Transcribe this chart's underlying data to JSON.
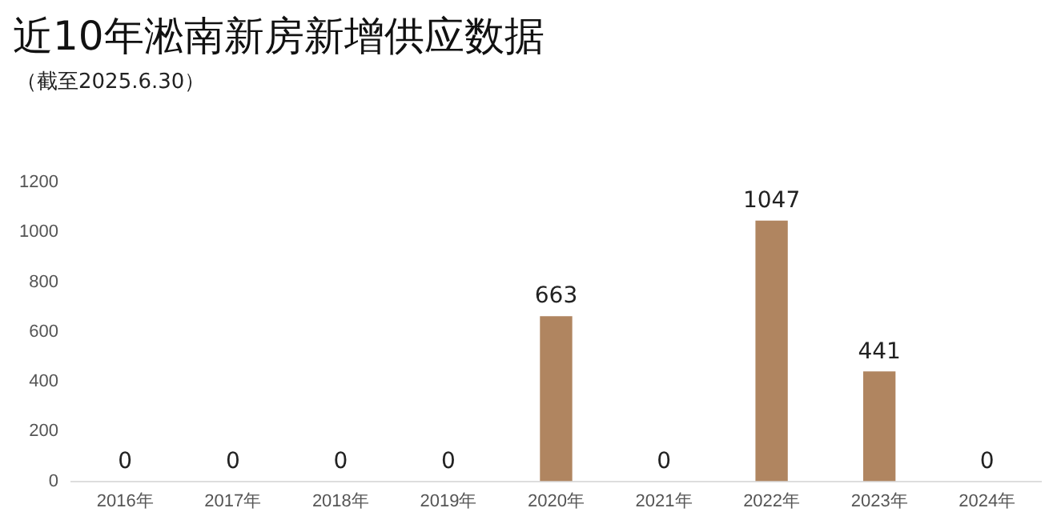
{
  "chart_data": {
    "type": "bar",
    "title": "近10年淞南新房新增供应数据",
    "subtitle": "（截至2025.6.30）",
    "categories": [
      "2016年",
      "2017年",
      "2018年",
      "2019年",
      "2020年",
      "2021年",
      "2022年",
      "2023年",
      "2024年"
    ],
    "values": [
      0,
      0,
      0,
      0,
      663,
      0,
      1047,
      441,
      0
    ],
    "color": "#b08560",
    "ylim": [
      0,
      1200
    ],
    "yticks": [
      0,
      200,
      400,
      600,
      800,
      1000,
      1200
    ],
    "grid": false,
    "data_labels": true
  }
}
